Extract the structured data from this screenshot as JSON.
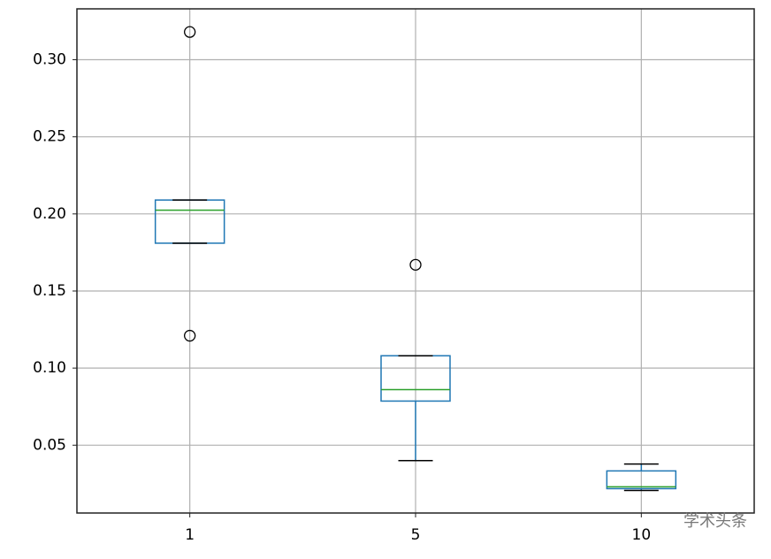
{
  "chart_data": {
    "type": "box",
    "categories": [
      "1",
      "5",
      "10"
    ],
    "boxes": [
      {
        "whislo": 0.181,
        "q1": 0.181,
        "med": 0.2024,
        "q3": 0.209,
        "whishi": 0.209,
        "fliers": [
          0.318,
          0.121
        ]
      },
      {
        "whislo": 0.04,
        "q1": 0.0786,
        "med": 0.086,
        "q3": 0.108,
        "whishi": 0.108,
        "fliers": [
          0.167
        ]
      },
      {
        "whislo": 0.0206,
        "q1": 0.0218,
        "med": 0.023,
        "q3": 0.0333,
        "whishi": 0.0378,
        "fliers": []
      }
    ],
    "box_color": "#1f77b4",
    "median_color": "#2ca02c",
    "ylim": [
      0.006,
      0.333
    ],
    "yticks": [
      0.05,
      {
        "value": 0.1,
        "label": "0.10"
      },
      0.15,
      {
        "value": 0.2,
        "label": "0.20"
      },
      0.25,
      {
        "value": 0.3,
        "label": "0.30"
      }
    ],
    "grid": true,
    "watermark": "学术头条"
  }
}
